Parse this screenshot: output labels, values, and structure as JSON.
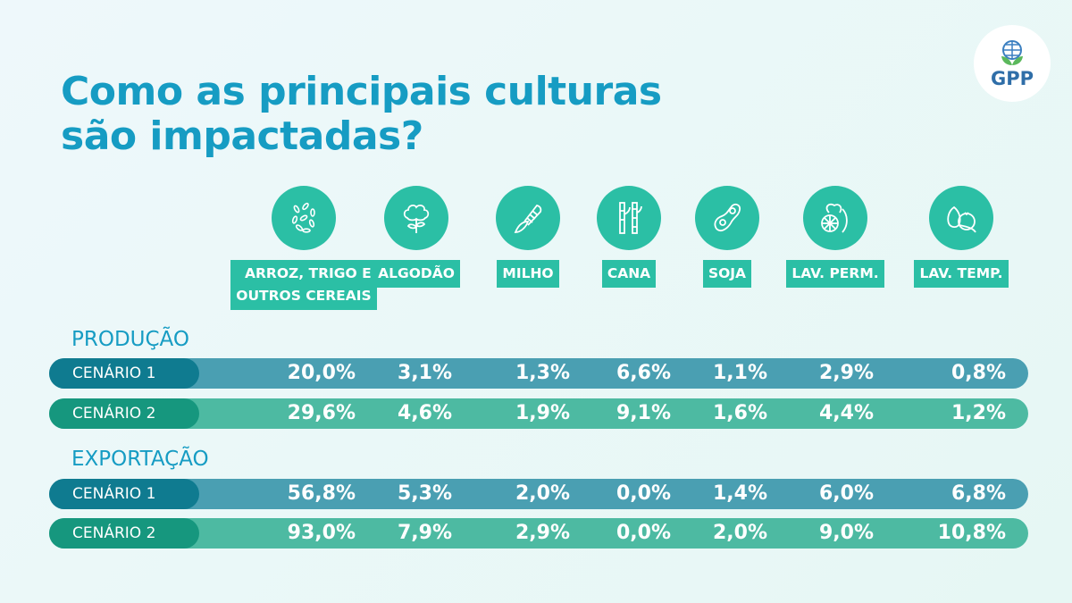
{
  "title_line1": "Como as principais culturas",
  "title_line2": "são impactadas?",
  "logo": "GPP",
  "crops": [
    {
      "label1": "ARROZ, TRIGO E",
      "label2": "OUTROS CEREAIS",
      "icon": "grains-icon"
    },
    {
      "label1": "ALGODÃO",
      "icon": "cotton-icon"
    },
    {
      "label1": "MILHO",
      "icon": "corn-icon"
    },
    {
      "label1": "CANA",
      "icon": "sugarcane-icon"
    },
    {
      "label1": "SOJA",
      "icon": "soybean-icon"
    },
    {
      "label1": "LAV. PERM.",
      "icon": "fruits-icon"
    },
    {
      "label1": "LAV. TEMP.",
      "icon": "vegetables-icon"
    }
  ],
  "sections": [
    {
      "title": "PRODUÇÃO",
      "rows": [
        {
          "label": "CENÁRIO 1",
          "values": [
            "20,0%",
            "3,1%",
            "1,3%",
            "6,6%",
            "1,1%",
            "2,9%",
            "0,8%"
          ]
        },
        {
          "label": "CENÁRIO 2",
          "values": [
            "29,6%",
            "4,6%",
            "1,9%",
            "9,1%",
            "1,6%",
            "4,4%",
            "1,2%"
          ]
        }
      ]
    },
    {
      "title": "EXPORTAÇÃO",
      "rows": [
        {
          "label": "CENÁRIO 1",
          "values": [
            "56,8%",
            "5,3%",
            "2,0%",
            "0,0%",
            "1,4%",
            "6,0%",
            "6,8%"
          ]
        },
        {
          "label": "CENÁRIO 2",
          "values": [
            "93,0%",
            "7,9%",
            "2,9%",
            "0,0%",
            "2,0%",
            "9,0%",
            "10,8%"
          ]
        }
      ]
    }
  ],
  "colors": {
    "title": "#169cc3",
    "accent": "#2bbfa5",
    "scenario1": "#4a9fb2",
    "scenario2": "#4dbaa2"
  }
}
